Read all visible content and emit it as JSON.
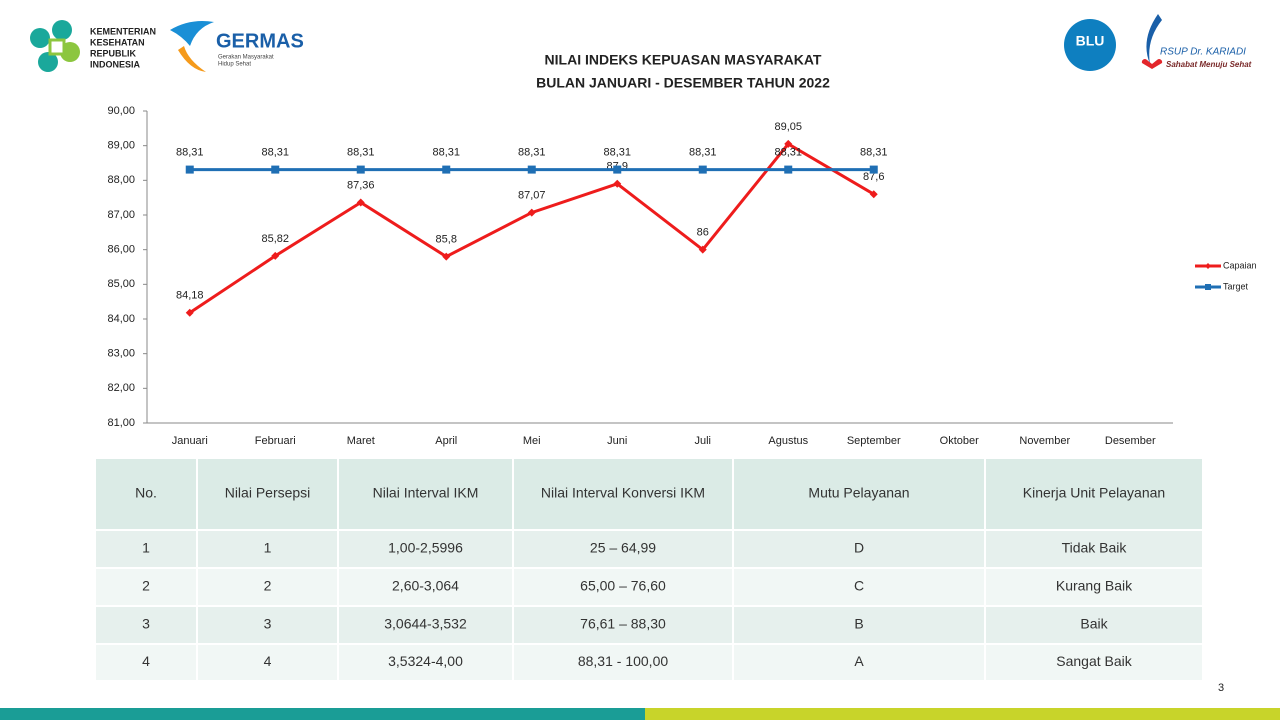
{
  "logos": {
    "kemenkes": [
      "KEMENTERIAN",
      "KESEHATAN",
      "REPUBLIK",
      "INDONESIA"
    ],
    "germas": "GERMAS",
    "germas_sub": [
      "Gerakan Masyarakat",
      "Hidup Sehat"
    ],
    "blu": "BLU",
    "rsup": "RSUP Dr. KARIADI",
    "rsup_sub": "Sahabat Menuju Sehat"
  },
  "chart_data": {
    "type": "line",
    "title": [
      "NILAI INDEKS KEPUASAN MASYARAKAT",
      "BULAN JANUARI - DESEMBER TAHUN 2022"
    ],
    "categories": [
      "Januari",
      "Februari",
      "Maret",
      "April",
      "Mei",
      "Juni",
      "Juli",
      "Agustus",
      "September",
      "Oktober",
      "November",
      "Desember"
    ],
    "series": [
      {
        "name": "Capaian",
        "color": "#ee1c1c",
        "values": [
          84.18,
          85.82,
          87.36,
          85.8,
          87.07,
          87.9,
          86,
          89.05,
          87.6,
          null,
          null,
          null
        ],
        "value_labels": [
          "84,18",
          "85,82",
          "87,36",
          "85,8",
          "87,07",
          "87,9",
          "86",
          "89,05",
          "87,6",
          null,
          null,
          null
        ]
      },
      {
        "name": "Target",
        "color": "#1f6fb4",
        "values": [
          88.31,
          88.31,
          88.31,
          88.31,
          88.31,
          88.31,
          88.31,
          88.31,
          88.31,
          null,
          null,
          null
        ],
        "value_labels": [
          "88,31",
          "88,31",
          "88,31",
          "88,31",
          "88,31",
          "88,31",
          "88,31",
          "88,31",
          "88,31",
          null,
          null,
          null
        ]
      }
    ],
    "ylim": [
      81,
      90
    ],
    "yticks": [
      {
        "value": 81,
        "label": "81,00"
      },
      {
        "value": 82,
        "label": "82,00"
      },
      {
        "value": 83,
        "label": "83,00"
      },
      {
        "value": 84,
        "label": "84,00"
      },
      {
        "value": 85,
        "label": "85,00"
      },
      {
        "value": 86,
        "label": "86,00"
      },
      {
        "value": 87,
        "label": "87,00"
      },
      {
        "value": 88,
        "label": "88,00"
      },
      {
        "value": 89,
        "label": "89,00"
      },
      {
        "value": 90,
        "label": "90,00"
      }
    ],
    "legend": "right"
  },
  "table": {
    "header": [
      "No.",
      "Nilai Persepsi",
      "Nilai Interval IKM",
      "Nilai Interval Konversi IKM",
      "Mutu Pelayanan",
      "Kinerja Unit Pelayanan"
    ],
    "rows": [
      [
        "1",
        "1",
        "1,00-2,5996",
        "25 – 64,99",
        "D",
        "Tidak Baik"
      ],
      [
        "2",
        "2",
        "2,60-3,064",
        "65,00 – 76,60",
        "C",
        "Kurang Baik"
      ],
      [
        "3",
        "3",
        "3,0644-3,532",
        "76,61 – 88,30",
        "B",
        "Baik"
      ],
      [
        "4",
        "4",
        "3,5324-4,00",
        "88,31 - 100,00",
        "A",
        "Sangat Baik"
      ]
    ]
  },
  "page_number": "3"
}
